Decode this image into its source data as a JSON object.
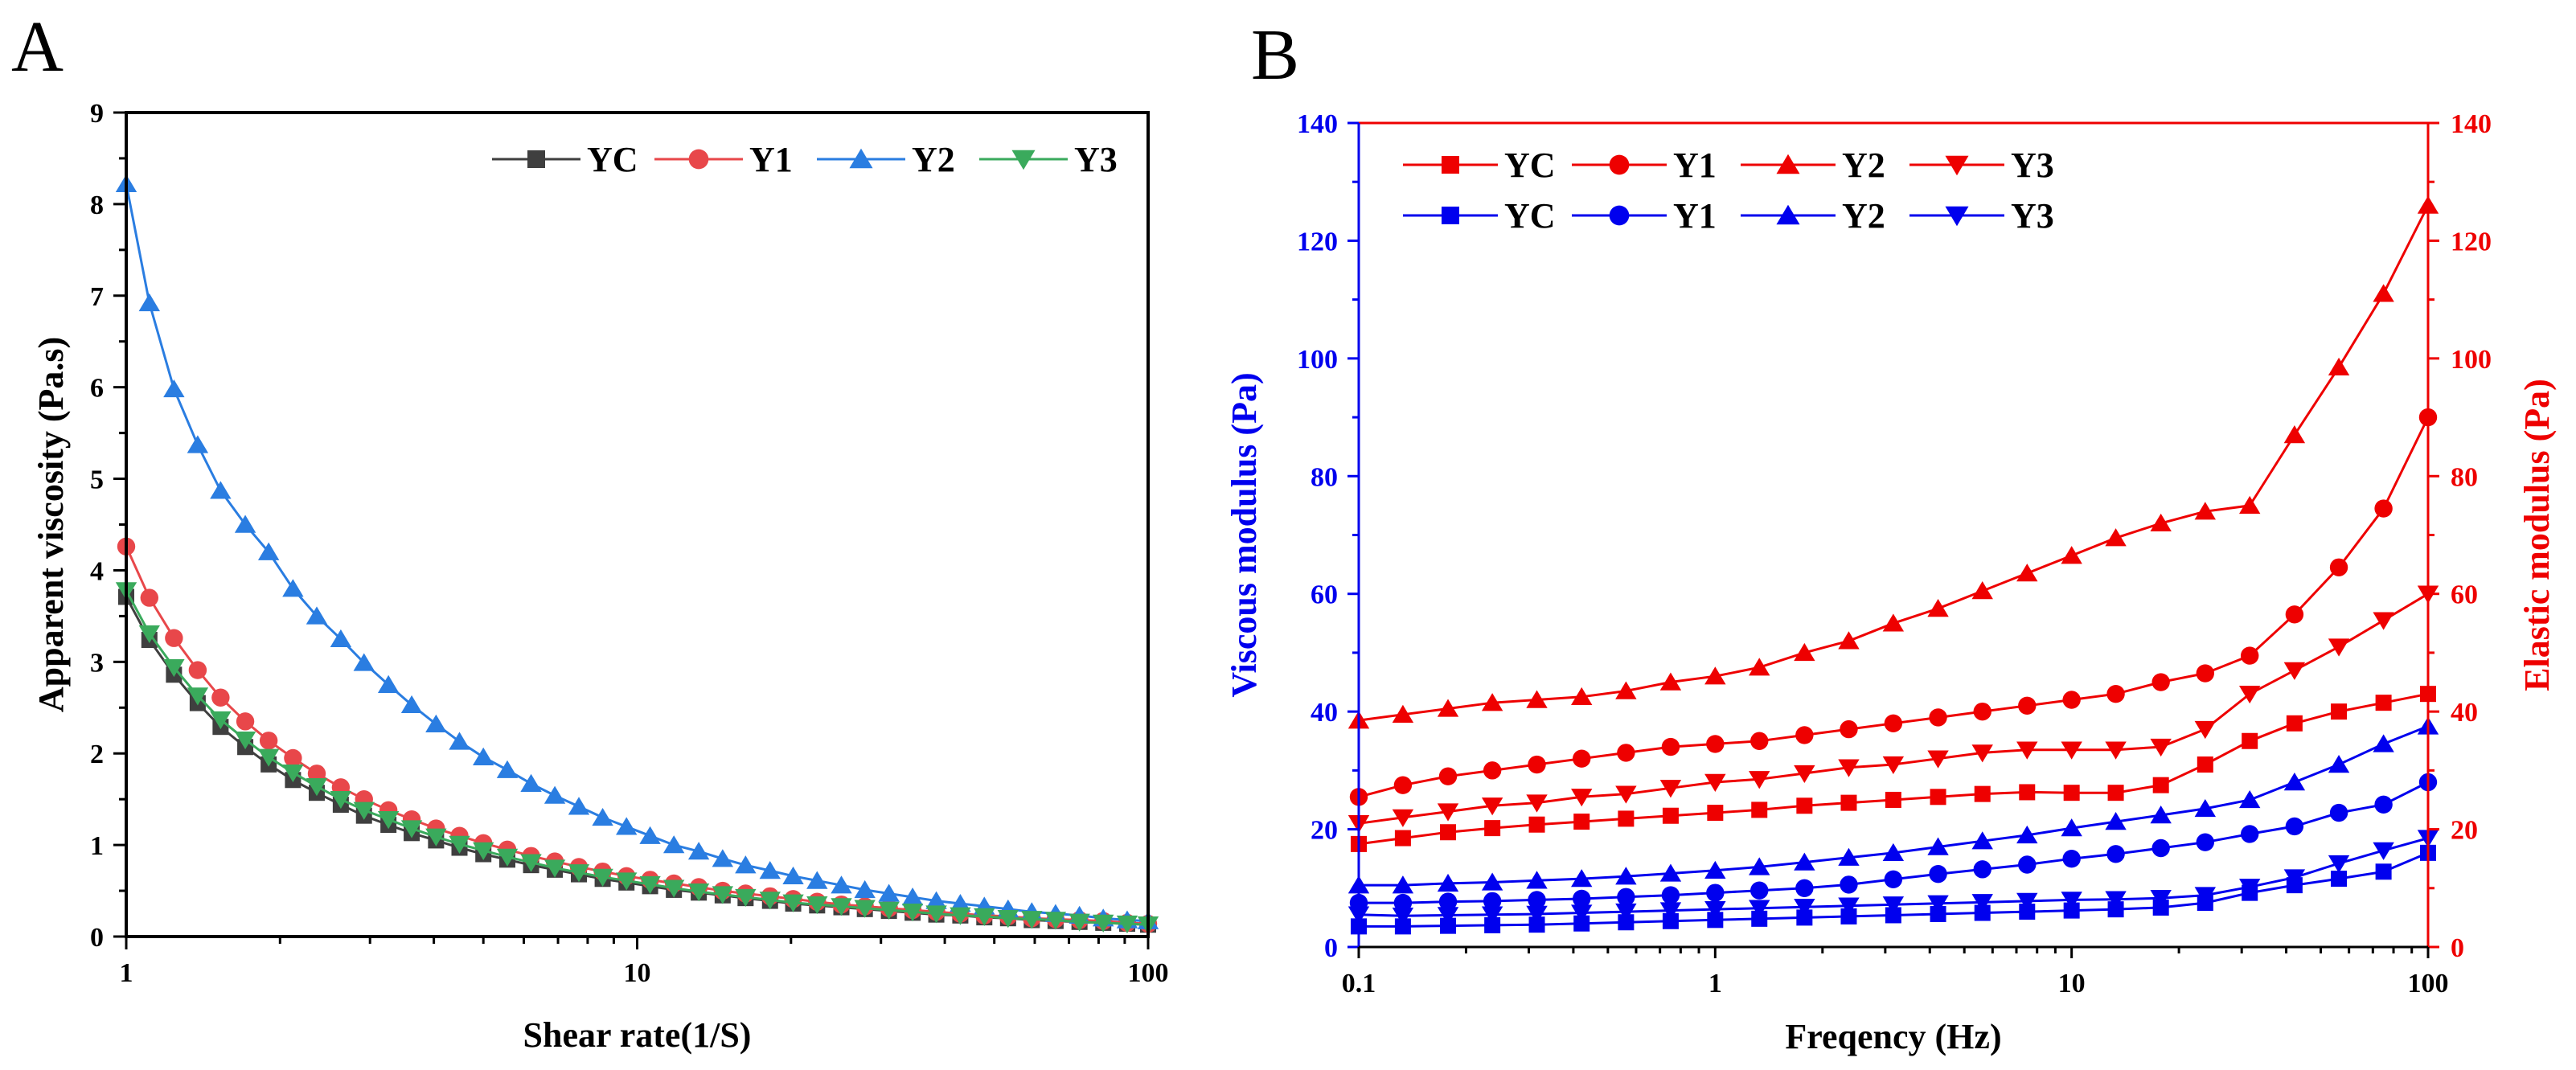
{
  "chart_data": [
    {
      "panel": "A",
      "type": "line",
      "xscale": "log",
      "xlabel": "Shear rate(1/S)",
      "ylabel": "Apparent viscosity (Pa.s)",
      "xlim": [
        1,
        100
      ],
      "ylim": [
        0,
        9
      ],
      "xticks": [
        1,
        10,
        100
      ],
      "xtick_labels": [
        "1",
        "10",
        "100"
      ],
      "yticks": [
        0,
        1,
        2,
        3,
        4,
        5,
        6,
        7,
        8,
        9
      ],
      "ytick_labels": [
        "0",
        "1",
        "2",
        "3",
        "4",
        "5",
        "6",
        "7",
        "8",
        "9"
      ],
      "legend_position": "top-right",
      "x": [
        1,
        1.11,
        1.24,
        1.38,
        1.53,
        1.71,
        1.9,
        2.12,
        2.36,
        2.63,
        2.92,
        3.26,
        3.62,
        4.04,
        4.49,
        5,
        5.57,
        6.2,
        6.9,
        7.69,
        8.56,
        9.53,
        10.6,
        11.8,
        13.2,
        14.7,
        16.3,
        18.2,
        20.2,
        22.5,
        25.1,
        27.9,
        31.1,
        34.6,
        38.5,
        42.9,
        47.8,
        53.2,
        59.2,
        65.9,
        73.4,
        81.7,
        91,
        100
      ],
      "series": [
        {
          "name": "YC",
          "color": "#3f3f3f",
          "marker": "square",
          "values": [
            3.71,
            3.24,
            2.86,
            2.55,
            2.29,
            2.07,
            1.88,
            1.71,
            1.57,
            1.44,
            1.32,
            1.22,
            1.13,
            1.05,
            0.97,
            0.9,
            0.84,
            0.78,
            0.73,
            0.68,
            0.63,
            0.59,
            0.55,
            0.51,
            0.48,
            0.45,
            0.42,
            0.39,
            0.36,
            0.34,
            0.32,
            0.3,
            0.28,
            0.26,
            0.24,
            0.23,
            0.21,
            0.2,
            0.18,
            0.17,
            0.16,
            0.15,
            0.14,
            0.13
          ]
        },
        {
          "name": "Y1",
          "color": "#e8474a",
          "marker": "circle",
          "values": [
            4.26,
            3.7,
            3.26,
            2.91,
            2.61,
            2.35,
            2.14,
            1.95,
            1.78,
            1.63,
            1.5,
            1.38,
            1.28,
            1.18,
            1.1,
            1.02,
            0.95,
            0.88,
            0.82,
            0.76,
            0.71,
            0.66,
            0.62,
            0.58,
            0.54,
            0.5,
            0.47,
            0.44,
            0.41,
            0.38,
            0.35,
            0.33,
            0.31,
            0.29,
            0.27,
            0.25,
            0.23,
            0.22,
            0.2,
            0.19,
            0.18,
            0.17,
            0.15,
            0.14
          ]
        },
        {
          "name": "Y2",
          "color": "#2a7de1",
          "marker": "triangle-up",
          "values": [
            8.22,
            6.92,
            5.98,
            5.37,
            4.87,
            4.5,
            4.2,
            3.8,
            3.5,
            3.25,
            2.99,
            2.75,
            2.53,
            2.32,
            2.13,
            1.96,
            1.82,
            1.67,
            1.54,
            1.42,
            1.3,
            1.2,
            1.1,
            1.0,
            0.93,
            0.85,
            0.78,
            0.72,
            0.66,
            0.61,
            0.56,
            0.51,
            0.47,
            0.43,
            0.39,
            0.36,
            0.33,
            0.3,
            0.27,
            0.25,
            0.23,
            0.2,
            0.18,
            0.17
          ]
        },
        {
          "name": "Y3",
          "color": "#3aaa5c",
          "marker": "triangle-down",
          "values": [
            3.78,
            3.31,
            2.94,
            2.63,
            2.37,
            2.15,
            1.96,
            1.79,
            1.64,
            1.5,
            1.38,
            1.28,
            1.18,
            1.09,
            1.01,
            0.94,
            0.87,
            0.81,
            0.75,
            0.7,
            0.65,
            0.61,
            0.57,
            0.53,
            0.49,
            0.46,
            0.43,
            0.4,
            0.37,
            0.35,
            0.33,
            0.31,
            0.29,
            0.27,
            0.25,
            0.23,
            0.22,
            0.2,
            0.19,
            0.18,
            0.16,
            0.15,
            0.14,
            0.13
          ]
        }
      ]
    },
    {
      "panel": "B",
      "type": "line",
      "xscale": "log",
      "xlabel": "Freqency (Hz)",
      "ylabel_left": "Viscous modulus (Pa)",
      "ylabel_right": "Elastic modulus (Pa)",
      "xlim": [
        0.1,
        100
      ],
      "ylim": [
        0,
        140
      ],
      "xticks": [
        0.1,
        1,
        10,
        100
      ],
      "xtick_labels": [
        "0.1",
        "1",
        "10",
        "100"
      ],
      "yticks": [
        0,
        20,
        40,
        60,
        80,
        100,
        120,
        140
      ],
      "ytick_labels": [
        "0",
        "20",
        "40",
        "60",
        "80",
        "100",
        "120",
        "140"
      ],
      "left_axis_color": "#0000ee",
      "right_axis_color": "#ee0000",
      "legend_position": "top-left",
      "x": [
        0.1,
        0.133,
        0.178,
        0.237,
        0.316,
        0.422,
        0.562,
        0.75,
        1.0,
        1.33,
        1.78,
        2.37,
        3.16,
        4.22,
        5.62,
        7.5,
        10,
        13.3,
        17.8,
        23.7,
        31.6,
        42.2,
        56.2,
        75,
        100
      ],
      "series": [
        {
          "name": "YC",
          "axis": "elastic",
          "color": "#ee0000",
          "marker": "square",
          "values": [
            17.5,
            18.5,
            19.5,
            20.2,
            20.8,
            21.3,
            21.8,
            22.3,
            22.8,
            23.3,
            24,
            24.5,
            25,
            25.5,
            26,
            26.3,
            26.2,
            26.2,
            27.5,
            31,
            35,
            38,
            40,
            41.5,
            43
          ]
        },
        {
          "name": "Y1",
          "axis": "elastic",
          "color": "#ee0000",
          "marker": "circle",
          "values": [
            25.5,
            27.5,
            29,
            30,
            31,
            32,
            33,
            34,
            34.5,
            35,
            36,
            37,
            38,
            39,
            40,
            41,
            42,
            43,
            45,
            46.5,
            49.5,
            56.5,
            64.5,
            74.5,
            90
          ]
        },
        {
          "name": "Y2",
          "axis": "elastic",
          "color": "#ee0000",
          "marker": "triangle-up",
          "values": [
            38.5,
            39.5,
            40.5,
            41.5,
            42,
            42.5,
            43.5,
            45,
            46,
            47.5,
            50,
            52,
            55,
            57.5,
            60.5,
            63.5,
            66.5,
            69.5,
            72,
            74,
            75,
            87,
            98.5,
            111,
            126
          ]
        },
        {
          "name": "Y3",
          "axis": "elastic",
          "color": "#ee0000",
          "marker": "triangle-down",
          "values": [
            21,
            22,
            23,
            24,
            24.5,
            25.5,
            26,
            27,
            28,
            28.5,
            29.5,
            30.5,
            31,
            32,
            33,
            33.5,
            33.5,
            33.5,
            34,
            37,
            43,
            47,
            51,
            55.5,
            60
          ]
        },
        {
          "name": "YC",
          "axis": "viscous",
          "color": "#0000ee",
          "marker": "square",
          "values": [
            3.5,
            3.5,
            3.6,
            3.7,
            3.8,
            4.0,
            4.2,
            4.4,
            4.6,
            4.8,
            5.0,
            5.2,
            5.4,
            5.6,
            5.8,
            6.0,
            6.2,
            6.4,
            6.7,
            7.5,
            9.2,
            10.5,
            11.6,
            12.8,
            16
          ]
        },
        {
          "name": "Y1",
          "axis": "viscous",
          "color": "#0000ee",
          "marker": "circle",
          "values": [
            7.5,
            7.5,
            7.7,
            7.8,
            8.0,
            8.2,
            8.5,
            8.8,
            9.2,
            9.6,
            10,
            10.6,
            11.5,
            12.4,
            13.2,
            14,
            15,
            15.8,
            16.8,
            17.8,
            19.2,
            20.5,
            22.8,
            24.2,
            28
          ]
        },
        {
          "name": "Y2",
          "axis": "viscous",
          "color": "#0000ee",
          "marker": "triangle-up",
          "values": [
            10.5,
            10.5,
            10.8,
            11.0,
            11.3,
            11.6,
            12.0,
            12.5,
            13.0,
            13.6,
            14.4,
            15.2,
            16.0,
            17.0,
            18.0,
            19.0,
            20.2,
            21.3,
            22.4,
            23.5,
            25,
            28,
            31,
            34.5,
            37.5
          ]
        },
        {
          "name": "Y3",
          "axis": "viscous",
          "color": "#0000ee",
          "marker": "triangle-down",
          "values": [
            5.5,
            5.3,
            5.4,
            5.5,
            5.6,
            5.8,
            6.0,
            6.2,
            6.4,
            6.6,
            6.8,
            7.0,
            7.2,
            7.4,
            7.6,
            7.8,
            8.0,
            8.1,
            8.3,
            8.8,
            10.2,
            11.8,
            14.2,
            16.4,
            18.5
          ]
        }
      ]
    }
  ],
  "panels": {
    "a_letter": "A",
    "b_letter": "B"
  }
}
